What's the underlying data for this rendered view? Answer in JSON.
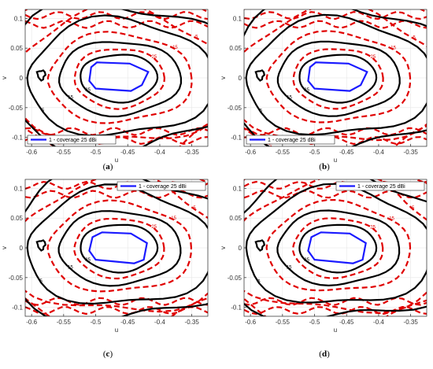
{
  "chart_data": [
    {
      "type": "contour",
      "panel": "a",
      "caption_letter": "a",
      "xlabel": "u",
      "ylabel": "v",
      "xlim": [
        -0.61,
        -0.325
      ],
      "ylim": [
        -0.115,
        0.115
      ],
      "xticks": [
        -0.6,
        -0.55,
        -0.5,
        -0.45,
        -0.4,
        -0.35
      ],
      "xtick_labels": [
        "-0.6",
        "-0.55",
        "-0.5",
        "-0.45",
        "-0.4",
        "-0.35"
      ],
      "yticks": [
        -0.1,
        -0.05,
        0,
        0.05,
        0.1
      ],
      "ytick_labels": [
        "-0.1",
        "-0.05",
        "0",
        "0.05",
        "0.1"
      ],
      "grid": true,
      "legend_position": "bottom-left",
      "legend_label": "1 - coverage 25 dBi",
      "contour_levels": [
        "0",
        "5",
        "15",
        "25"
      ],
      "colors": {
        "contour_solid": "#000000",
        "contour_dashed": "#e00000",
        "coverage": "#1a1aff"
      },
      "coverage_polygon": [
        [
          -0.507,
          0.018
        ],
        [
          -0.498,
          0.026
        ],
        [
          -0.447,
          0.024
        ],
        [
          -0.418,
          0.01
        ],
        [
          -0.428,
          -0.012
        ],
        [
          -0.445,
          -0.022
        ],
        [
          -0.5,
          -0.018
        ],
        [
          -0.51,
          -0.005
        ]
      ]
    },
    {
      "type": "contour",
      "panel": "b",
      "caption_letter": "b",
      "xlabel": "u",
      "ylabel": "v",
      "xlim": [
        -0.61,
        -0.325
      ],
      "ylim": [
        -0.115,
        0.115
      ],
      "xticks": [
        -0.6,
        -0.55,
        -0.5,
        -0.45,
        -0.4,
        -0.35
      ],
      "xtick_labels": [
        "-0.6",
        "-0.55",
        "-0.5",
        "-0.45",
        "-0.4",
        "-0.35"
      ],
      "yticks": [
        -0.1,
        -0.05,
        0,
        0.05,
        0.1
      ],
      "ytick_labels": [
        "-0.1",
        "-0.05",
        "0",
        "0.05",
        "0.1"
      ],
      "grid": true,
      "legend_position": "bottom-left",
      "legend_label": "1 - coverage 25 dBi",
      "contour_levels": [
        "0",
        "5",
        "15",
        "25"
      ],
      "colors": {
        "contour_solid": "#000000",
        "contour_dashed": "#e00000",
        "coverage": "#1a1aff"
      },
      "coverage_polygon": [
        [
          -0.507,
          0.018
        ],
        [
          -0.498,
          0.026
        ],
        [
          -0.447,
          0.024
        ],
        [
          -0.418,
          0.01
        ],
        [
          -0.428,
          -0.012
        ],
        [
          -0.445,
          -0.022
        ],
        [
          -0.5,
          -0.018
        ],
        [
          -0.51,
          -0.005
        ]
      ]
    },
    {
      "type": "contour",
      "panel": "c",
      "caption_letter": "c",
      "xlabel": "u",
      "ylabel": "v",
      "xlim": [
        -0.61,
        -0.325
      ],
      "ylim": [
        -0.115,
        0.115
      ],
      "xticks": [
        -0.6,
        -0.55,
        -0.5,
        -0.45,
        -0.4,
        -0.35
      ],
      "xtick_labels": [
        "-0.6",
        "-0.55",
        "-0.5",
        "-0.45",
        "-0.4",
        "-0.35"
      ],
      "yticks": [
        -0.1,
        -0.05,
        0,
        0.05,
        0.1
      ],
      "ytick_labels": [
        "-0.1",
        "-0.05",
        "0",
        "0.05",
        "0.1"
      ],
      "grid": true,
      "legend_position": "top-right",
      "legend_label": "1 - coverage 25 dBi",
      "contour_levels": [
        "0",
        "5",
        "15",
        "25"
      ],
      "colors": {
        "contour_solid": "#000000",
        "contour_dashed": "#e00000",
        "coverage": "#1a1aff"
      },
      "coverage_polygon": [
        [
          -0.505,
          0.018
        ],
        [
          -0.49,
          0.026
        ],
        [
          -0.445,
          0.024
        ],
        [
          -0.42,
          0.008
        ],
        [
          -0.425,
          -0.02
        ],
        [
          -0.44,
          -0.026
        ],
        [
          -0.5,
          -0.02
        ],
        [
          -0.51,
          -0.005
        ]
      ]
    },
    {
      "type": "contour",
      "panel": "d",
      "caption_letter": "d",
      "xlabel": "u",
      "ylabel": "v",
      "xlim": [
        -0.61,
        -0.325
      ],
      "ylim": [
        -0.115,
        0.115
      ],
      "xticks": [
        -0.6,
        -0.55,
        -0.5,
        -0.45,
        -0.4,
        -0.35
      ],
      "xtick_labels": [
        "-0.6",
        "-0.55",
        "-0.5",
        "-0.45",
        "-0.4",
        "-0.35"
      ],
      "yticks": [
        -0.1,
        -0.05,
        0,
        0.05,
        0.1
      ],
      "ytick_labels": [
        "-0.1",
        "-0.05",
        "0",
        "0.05",
        "0.1"
      ],
      "grid": true,
      "legend_position": "top-right",
      "legend_label": "1 - coverage 25 dBi",
      "contour_levels": [
        "0",
        "5",
        "15",
        "25"
      ],
      "colors": {
        "contour_solid": "#000000",
        "contour_dashed": "#e00000",
        "coverage": "#1a1aff"
      },
      "coverage_polygon": [
        [
          -0.505,
          0.018
        ],
        [
          -0.49,
          0.026
        ],
        [
          -0.445,
          0.024
        ],
        [
          -0.42,
          0.008
        ],
        [
          -0.425,
          -0.02
        ],
        [
          -0.44,
          -0.026
        ],
        [
          -0.5,
          -0.02
        ],
        [
          -0.51,
          -0.005
        ]
      ]
    }
  ]
}
